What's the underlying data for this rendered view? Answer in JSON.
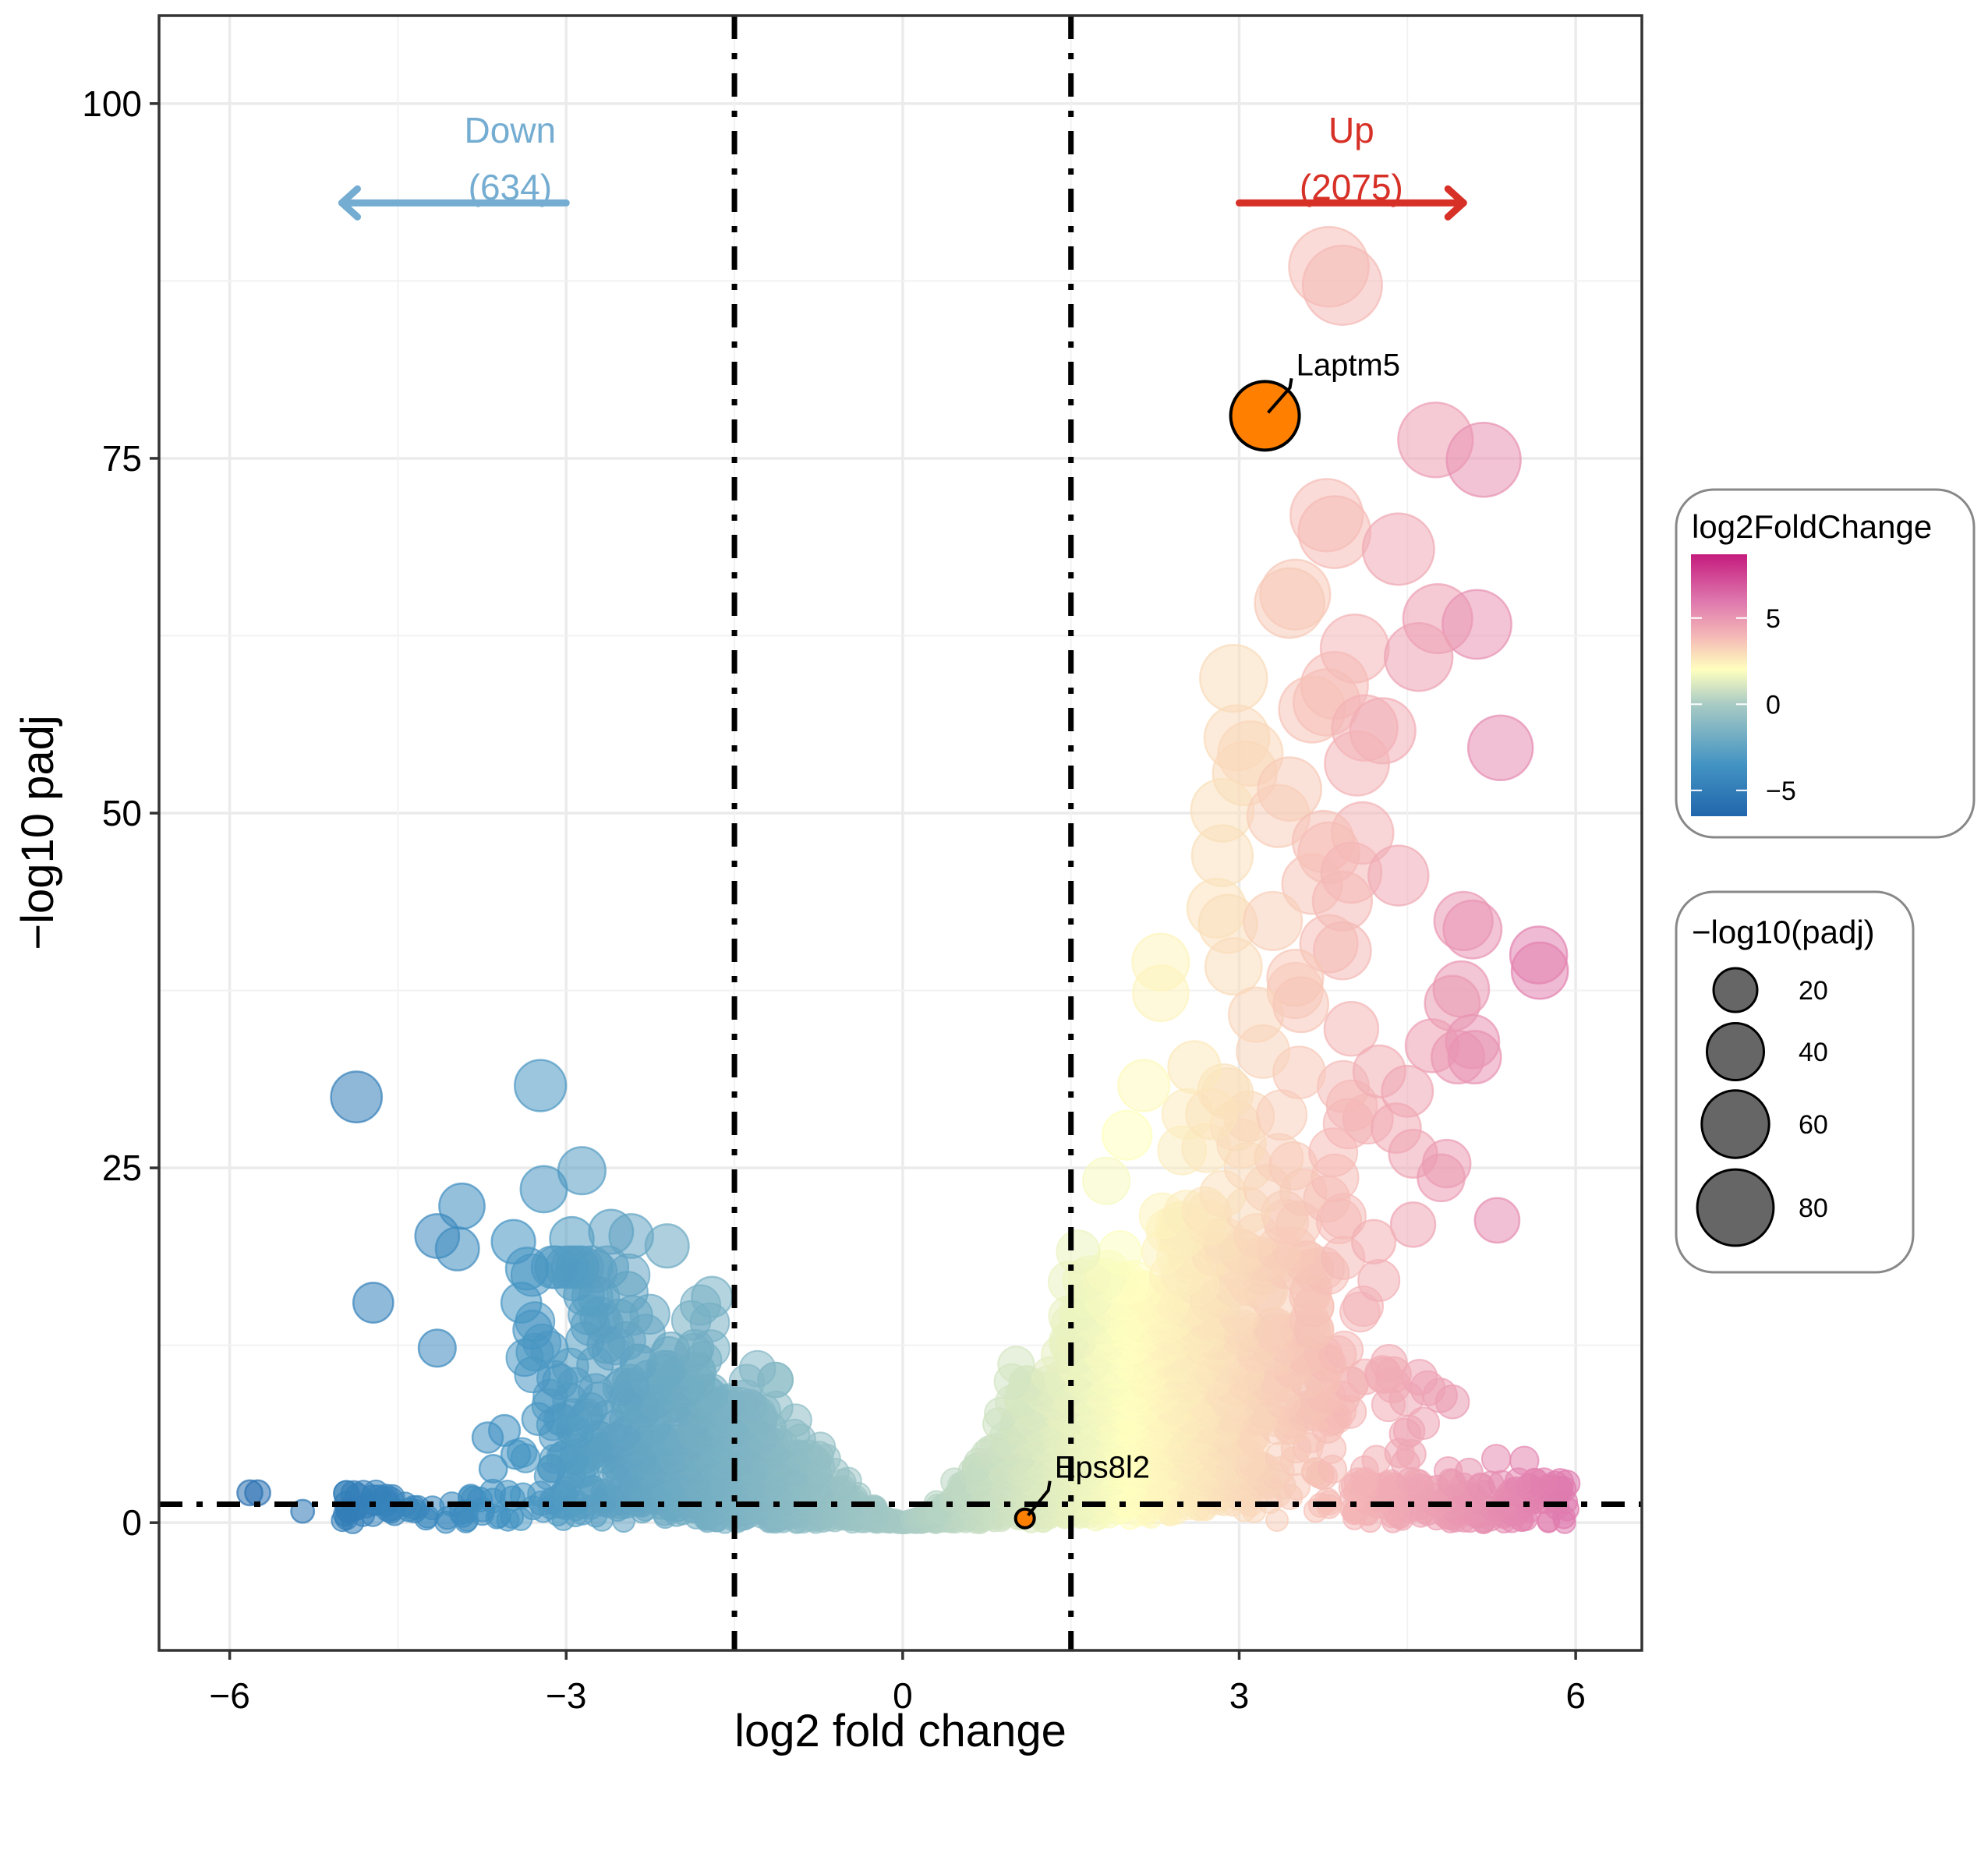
{
  "chart_data": {
    "type": "scatter",
    "title": "",
    "xlabel": "log2 fold change",
    "ylabel": "−log10 padj",
    "xlim": [
      -6.63,
      6.59
    ],
    "ylim": [
      -9,
      106.2
    ],
    "x_ticks": [
      -6,
      -3,
      0,
      3,
      6
    ],
    "x_tick_labels": [
      "−6",
      "−3",
      "0",
      "3",
      "6"
    ],
    "y_ticks": [
      0,
      25,
      50,
      75,
      100
    ],
    "y_tick_labels": [
      "0",
      "25",
      "50",
      "75",
      "100"
    ],
    "grid": true,
    "threshold_lines": {
      "vertical": [
        -1.5,
        1.5
      ],
      "horizontal": 1.3,
      "style": "dot-dash",
      "color": "#000000"
    },
    "annotations": {
      "down": {
        "label": "Down",
        "count": "(634)",
        "color": "#74ADD1",
        "arrow_from": -3.0,
        "arrow_to": -5.0,
        "y": 93
      },
      "up": {
        "label": "Up",
        "count": "(2075)",
        "color": "#D73027",
        "arrow_from": 3.0,
        "arrow_to": 5.0,
        "y": 93
      }
    },
    "highlighted_genes": [
      {
        "name": "Laptm5",
        "x": 3.23,
        "y": 78.0,
        "color": "#FF7F00"
      },
      {
        "name": "Eps8l2",
        "x": 1.09,
        "y": 0.3,
        "color": "#FF7F00"
      }
    ],
    "color_scale": {
      "title": "log2FoldChange",
      "variable": "log2FoldChange",
      "range": [
        -6.5,
        8.7
      ],
      "stops": [
        {
          "value": -6.5,
          "color": "#2166AC"
        },
        {
          "value": -3.5,
          "color": "#4393C3"
        },
        {
          "value": 0,
          "color": "#A8CBC4"
        },
        {
          "value": 2,
          "color": "#FFFFBF"
        },
        {
          "value": 4,
          "color": "#F4B6B6"
        },
        {
          "value": 6,
          "color": "#DE77AE"
        },
        {
          "value": 8.7,
          "color": "#C51B7D"
        }
      ],
      "ticks": [
        5,
        0,
        -5
      ],
      "tick_labels": [
        "5",
        "0",
        "−5"
      ],
      "placement": "right"
    },
    "size_scale": {
      "title": "−log10(padj)",
      "variable": "-log10(padj)",
      "breaks": [
        20,
        40,
        60,
        80
      ],
      "break_labels": [
        "20",
        "40",
        "60",
        "80"
      ],
      "legend_fill": "#666666",
      "placement": "right"
    },
    "outlier_points": [
      [
        -4.87,
        30.0
      ],
      [
        -3.23,
        30.8
      ],
      [
        -2.86,
        24.8
      ],
      [
        -3.2,
        23.5
      ],
      [
        -3.93,
        22.3
      ],
      [
        -4.15,
        20.2
      ],
      [
        -3.97,
        19.3
      ],
      [
        -3.47,
        19.8
      ],
      [
        -4.72,
        15.5
      ],
      [
        -4.15,
        12.3
      ],
      [
        -3.35,
        17.9
      ],
      [
        -3.4,
        15.5
      ],
      [
        -3.3,
        13.6
      ],
      [
        -2.95,
        20.0
      ],
      [
        -2.6,
        20.5
      ],
      [
        -2.42,
        20.2
      ],
      [
        -2.1,
        19.5
      ],
      [
        -1.7,
        15.9
      ],
      [
        -5.82,
        2.1
      ],
      [
        -5.75,
        2.1
      ],
      [
        -5.35,
        0.8
      ],
      [
        -4.95,
        0.9
      ],
      [
        -4.55,
        1.0
      ],
      [
        -4.4,
        0.9
      ],
      [
        -3.7,
        6.0
      ],
      [
        -3.55,
        6.5
      ],
      [
        -3.65,
        3.8
      ],
      [
        -3.45,
        4.8
      ],
      [
        -3.25,
        7.3
      ],
      [
        3.8,
        88.5
      ],
      [
        3.92,
        87.2
      ],
      [
        4.75,
        76.3
      ],
      [
        5.18,
        74.9
      ],
      [
        3.78,
        71.0
      ],
      [
        3.85,
        69.8
      ],
      [
        4.42,
        68.6
      ],
      [
        3.5,
        65.4
      ],
      [
        3.45,
        64.8
      ],
      [
        4.77,
        63.7
      ],
      [
        5.12,
        63.3
      ],
      [
        4.03,
        61.6
      ],
      [
        4.6,
        61.0
      ],
      [
        2.95,
        59.5
      ],
      [
        3.85,
        59.0
      ],
      [
        3.78,
        57.8
      ],
      [
        3.65,
        57.3
      ],
      [
        4.12,
        56.0
      ],
      [
        4.28,
        55.8
      ],
      [
        2.98,
        55.3
      ],
      [
        5.33,
        54.6
      ],
      [
        3.1,
        54.2
      ],
      [
        4.05,
        53.5
      ],
      [
        3.05,
        52.8
      ],
      [
        3.45,
        51.7
      ],
      [
        2.85,
        50.2
      ],
      [
        3.35,
        49.8
      ],
      [
        4.1,
        48.6
      ],
      [
        3.75,
        48.0
      ],
      [
        3.8,
        47.2
      ],
      [
        2.85,
        47.0
      ],
      [
        3.65,
        45.0
      ],
      [
        4.0,
        45.8
      ],
      [
        4.42,
        45.6
      ],
      [
        2.8,
        43.3
      ],
      [
        3.92,
        43.8
      ],
      [
        2.9,
        42.2
      ],
      [
        3.3,
        42.4
      ],
      [
        5.0,
        42.4
      ],
      [
        5.08,
        41.8
      ],
      [
        3.8,
        40.8
      ],
      [
        5.67,
        40.0
      ],
      [
        3.92,
        40.3
      ],
      [
        2.3,
        39.5
      ],
      [
        5.68,
        38.9
      ],
      [
        2.95,
        39.2
      ],
      [
        3.5,
        38.4
      ],
      [
        2.3,
        37.3
      ],
      [
        4.98,
        37.6
      ],
      [
        4.9,
        36.6
      ],
      [
        3.15,
        35.8
      ],
      [
        3.55,
        36.5
      ],
      [
        4.0,
        34.8
      ],
      [
        4.72,
        33.6
      ],
      [
        5.08,
        33.9
      ],
      [
        4.95,
        32.8
      ],
      [
        5.1,
        32.8
      ],
      [
        4.25,
        31.8
      ],
      [
        2.6,
        32.1
      ],
      [
        2.15,
        30.8
      ],
      [
        4.5,
        30.4
      ],
      [
        2.75,
        28.8
      ],
      [
        4.4,
        27.8
      ],
      [
        2.0,
        27.3
      ],
      [
        4.55,
        26.0
      ],
      [
        4.85,
        25.3
      ],
      [
        4.8,
        24.3
      ],
      [
        5.3,
        21.3
      ],
      [
        4.55,
        21.0
      ],
      [
        4.2,
        19.8
      ]
    ],
    "background_cloud": {
      "description": "dense cloud of non-highlighted genes, V-shaped around x=0",
      "down_region_center": -2.3,
      "up_region_center": 3.0,
      "n_points_drawn": 2600,
      "opacity": 0.55
    }
  }
}
